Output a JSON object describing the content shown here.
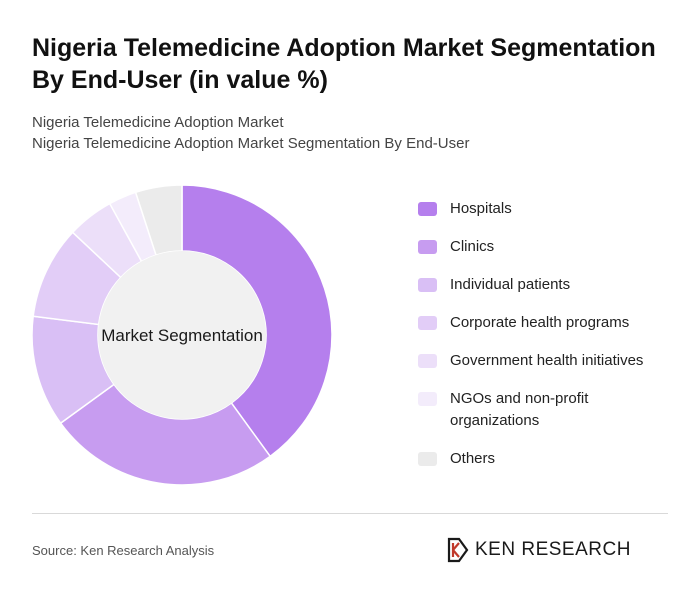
{
  "header": {
    "title": "Nigeria Telemedicine Adoption Market Segmentation By End-User (in value %)",
    "subtitle_line1": "Nigeria Telemedicine Adoption Market",
    "subtitle_line2": "Nigeria Telemedicine Adoption Market Segmentation By End-User"
  },
  "chart_data": {
    "type": "pie",
    "center_label": "Market Segmentation",
    "categories": [
      "Hospitals",
      "Clinics",
      "Individual patients",
      "Corporate health programs",
      "Government health initiatives",
      "NGOs and non-profit organizations",
      "Others"
    ],
    "values": [
      40,
      25,
      12,
      10,
      5,
      3,
      5
    ],
    "colors": [
      "#b57fed",
      "#c79cf0",
      "#d9bff5",
      "#e2cdf7",
      "#ecdff9",
      "#f3ecfb",
      "#ebebeb"
    ],
    "legend": "right"
  },
  "footer": {
    "source": "Source: Ken Research Analysis",
    "logo_text": "KEN RESEARCH"
  }
}
